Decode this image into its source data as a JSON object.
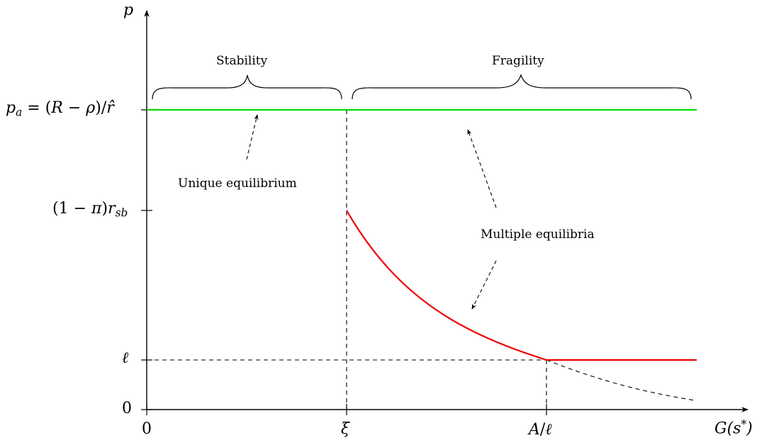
{
  "axes": {
    "y_label": "p",
    "x_label": "G(s*)"
  },
  "y_ticks": {
    "pa": "p_a = (R − ρ)/r̂",
    "mid": "(1 − π)r_sb",
    "ell": "ℓ",
    "zero": "0"
  },
  "x_ticks": {
    "zero": "0",
    "xi": "ξ",
    "a_over_l": "A/ℓ"
  },
  "regions": {
    "stability": "Stability",
    "fragility": "Fragility"
  },
  "annotations": {
    "unique": "Unique equilibrium",
    "multiple": "Multiple equilibria"
  },
  "colors": {
    "green_line": "#00dd00",
    "red_curve": "#ee0000",
    "axis": "#000000"
  }
}
